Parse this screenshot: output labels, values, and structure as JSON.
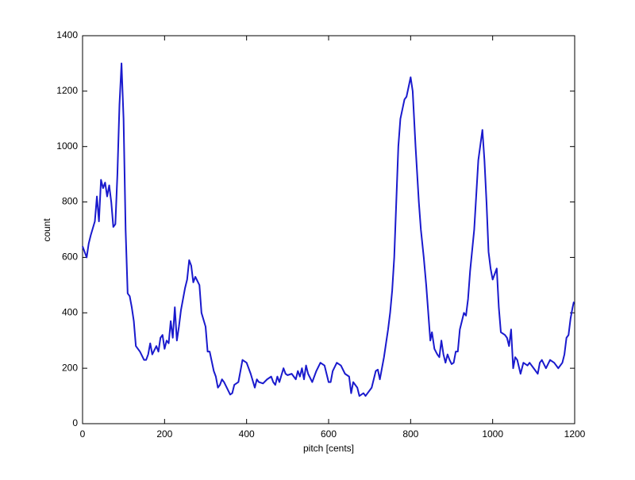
{
  "chart_data": {
    "type": "line",
    "x_label": "pitch [cents]",
    "y_label": "count",
    "x": [
      0,
      5,
      10,
      15,
      20,
      30,
      35,
      40,
      45,
      50,
      55,
      60,
      65,
      70,
      75,
      80,
      85,
      90,
      95,
      100,
      105,
      110,
      115,
      120,
      125,
      130,
      140,
      150,
      155,
      160,
      165,
      170,
      180,
      185,
      190,
      195,
      200,
      205,
      210,
      215,
      220,
      225,
      230,
      235,
      240,
      250,
      255,
      260,
      265,
      270,
      275,
      285,
      290,
      300,
      305,
      310,
      320,
      325,
      330,
      335,
      340,
      345,
      355,
      360,
      365,
      370,
      380,
      390,
      400,
      410,
      420,
      425,
      430,
      440,
      450,
      460,
      465,
      470,
      475,
      480,
      490,
      495,
      500,
      510,
      520,
      525,
      530,
      535,
      540,
      545,
      550,
      560,
      570,
      580,
      590,
      600,
      605,
      610,
      620,
      630,
      640,
      650,
      655,
      660,
      670,
      675,
      685,
      690,
      695,
      705,
      715,
      720,
      725,
      735,
      740,
      745,
      750,
      755,
      760,
      765,
      770,
      775,
      785,
      790,
      800,
      805,
      812,
      820,
      825,
      832,
      838,
      842,
      848,
      852,
      858,
      865,
      870,
      875,
      880,
      885,
      890,
      895,
      900,
      905,
      910,
      915,
      920,
      925,
      930,
      935,
      940,
      945,
      955,
      965,
      975,
      980,
      985,
      990,
      995,
      1000,
      1005,
      1010,
      1015,
      1020,
      1030,
      1035,
      1040,
      1045,
      1050,
      1055,
      1060,
      1068,
      1075,
      1085,
      1090,
      1100,
      1110,
      1115,
      1120,
      1130,
      1140,
      1150,
      1160,
      1170,
      1175,
      1180,
      1185,
      1190,
      1195,
      1198
    ],
    "series": [
      {
        "name": "count",
        "color": "#1a1acd",
        "values": [
          640,
          620,
          600,
          650,
          680,
          730,
          820,
          730,
          880,
          850,
          870,
          820,
          860,
          800,
          710,
          720,
          900,
          1150,
          1300,
          1100,
          700,
          470,
          460,
          420,
          370,
          280,
          260,
          230,
          230,
          250,
          290,
          250,
          280,
          260,
          310,
          320,
          270,
          300,
          290,
          370,
          310,
          420,
          300,
          350,
          410,
          490,
          520,
          590,
          570,
          510,
          530,
          500,
          400,
          350,
          260,
          260,
          190,
          170,
          130,
          140,
          160,
          150,
          120,
          105,
          110,
          140,
          150,
          230,
          220,
          180,
          130,
          160,
          150,
          145,
          160,
          170,
          150,
          140,
          170,
          150,
          200,
          180,
          175,
          180,
          160,
          190,
          170,
          200,
          160,
          210,
          180,
          150,
          190,
          220,
          210,
          150,
          150,
          190,
          220,
          210,
          180,
          170,
          110,
          150,
          130,
          100,
          110,
          100,
          110,
          130,
          190,
          195,
          160,
          240,
          290,
          340,
          400,
          480,
          600,
          800,
          1000,
          1100,
          1170,
          1180,
          1250,
          1200,
          1000,
          800,
          700,
          600,
          500,
          420,
          300,
          330,
          270,
          250,
          240,
          300,
          250,
          220,
          250,
          230,
          215,
          220,
          260,
          260,
          340,
          370,
          400,
          390,
          450,
          550,
          700,
          950,
          1060,
          950,
          800,
          620,
          560,
          520,
          540,
          560,
          420,
          330,
          320,
          310,
          280,
          340,
          200,
          240,
          230,
          180,
          220,
          210,
          220,
          200,
          180,
          220,
          230,
          200,
          230,
          220,
          200,
          220,
          250,
          310,
          320,
          380,
          420,
          440
        ]
      }
    ],
    "xlim": [
      0,
      1200
    ],
    "xticks": [
      0,
      200,
      400,
      600,
      800,
      1000,
      1200
    ],
    "ylim": [
      0,
      1400
    ],
    "yticks": [
      0,
      200,
      400,
      600,
      800,
      1000,
      1200,
      1400
    ]
  }
}
